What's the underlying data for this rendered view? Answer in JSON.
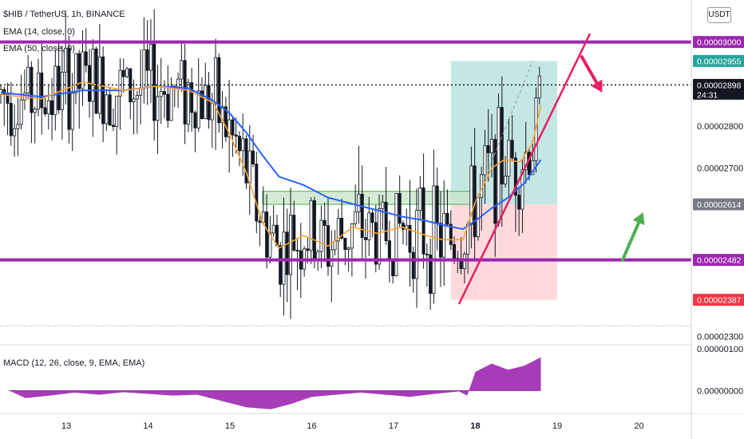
{
  "header": {
    "title": "$HIB / TetherUS, 1h, BINANCE",
    "ema14_label": "EMA (14, close, 0)",
    "ema50_label": "EMA (50, close, 0)",
    "unit_button": "USDT"
  },
  "macd": {
    "label": "MACD (12, 26, close, 9, EMA, EMA)"
  },
  "colors": {
    "up": "#26a69a",
    "down": "#ef5350",
    "candle": "#131722",
    "ema14": "#f7a334",
    "ema50": "#2962ff",
    "level": "#9c27b0",
    "trendline": "#e91e63",
    "profit_zone": "#b2dfdb",
    "loss_zone": "#ffcdd2",
    "consolidation_box": "#c8e6c9",
    "macd_fill": "#9c27b0"
  },
  "chart_data": [
    {
      "type": "candlestick",
      "title": "$HIB / TetherUS, 1h, BINANCE",
      "x_ticks": [
        "13",
        "14",
        "15",
        "16",
        "17",
        "18",
        "19",
        "20"
      ],
      "y_ticks": [
        "0.00002300",
        "0.00002700",
        "0.00002800"
      ],
      "ylim": [
        2.28e-05,
        3.1e-05
      ],
      "price_badges": [
        {
          "text": "0.00003000",
          "value": 3e-05,
          "color": "#9c27b0"
        },
        {
          "text": "0.00002955",
          "value": 2.955e-05,
          "color": "#26a69a"
        },
        {
          "text": "0.00002898",
          "value": 2.898e-05,
          "color": "#131722",
          "timer": "24:31"
        },
        {
          "text": "0.00002614",
          "value": 2.614e-05,
          "color": "#787b86"
        },
        {
          "text": "0.00002482",
          "value": 2.482e-05,
          "color": "#9c27b0"
        },
        {
          "text": "0.00002387",
          "value": 2.387e-05,
          "color": "#f23645"
        }
      ],
      "levels": [
        3e-05,
        2.482e-05
      ],
      "last_price": 2.898e-05,
      "ema14": [
        [
          12.2,
          2.875e-05
        ],
        [
          12.7,
          2.865e-05
        ],
        [
          13.2,
          2.905e-05
        ],
        [
          13.7,
          2.885e-05
        ],
        [
          14.1,
          2.895e-05
        ],
        [
          14.5,
          2.885e-05
        ],
        [
          14.8,
          2.855e-05
        ],
        [
          15.0,
          2.78e-05
        ],
        [
          15.2,
          2.69e-05
        ],
        [
          15.4,
          2.57e-05
        ],
        [
          15.6,
          2.51e-05
        ],
        [
          15.9,
          2.54e-05
        ],
        [
          16.2,
          2.515e-05
        ],
        [
          16.5,
          2.56e-05
        ],
        [
          16.8,
          2.545e-05
        ],
        [
          17.1,
          2.56e-05
        ],
        [
          17.4,
          2.54e-05
        ],
        [
          17.6,
          2.53e-05
        ],
        [
          17.85,
          2.53e-05
        ],
        [
          18.0,
          2.62e-05
        ],
        [
          18.2,
          2.7e-05
        ],
        [
          18.35,
          2.72e-05
        ],
        [
          18.55,
          2.715e-05
        ],
        [
          18.7,
          2.76e-05
        ],
        [
          18.8,
          2.85e-05
        ]
      ],
      "ema50": [
        [
          12.2,
          2.88e-05
        ],
        [
          12.7,
          2.87e-05
        ],
        [
          13.2,
          2.885e-05
        ],
        [
          13.7,
          2.885e-05
        ],
        [
          14.1,
          2.895e-05
        ],
        [
          14.5,
          2.89e-05
        ],
        [
          14.8,
          2.86e-05
        ],
        [
          15.0,
          2.83e-05
        ],
        [
          15.2,
          2.785e-05
        ],
        [
          15.4,
          2.73e-05
        ],
        [
          15.6,
          2.68e-05
        ],
        [
          15.9,
          2.66e-05
        ],
        [
          16.2,
          2.63e-05
        ],
        [
          16.5,
          2.615e-05
        ],
        [
          16.8,
          2.6e-05
        ],
        [
          17.1,
          2.585e-05
        ],
        [
          17.4,
          2.575e-05
        ],
        [
          17.6,
          2.565e-05
        ],
        [
          17.85,
          2.555e-05
        ],
        [
          18.0,
          2.575e-05
        ],
        [
          18.2,
          2.605e-05
        ],
        [
          18.4,
          2.63e-05
        ],
        [
          18.6,
          2.665e-05
        ],
        [
          18.8,
          2.72e-05
        ]
      ],
      "consolidation_box": {
        "x": [
          15.4,
          18.0
        ],
        "y": [
          2.614e-05,
          2.645e-05
        ]
      },
      "position": {
        "x_start": 17.7,
        "x_end": 19.0,
        "entry": 2.614e-05,
        "target": 2.955e-05,
        "stop": 2.387e-05
      },
      "trendline": [
        [
          17.8,
          2.377e-05
        ],
        [
          19.4,
          3.02e-05
        ]
      ],
      "projection_dashed": [
        [
          18.0,
          2.62e-05
        ],
        [
          18.7,
          2.955e-05
        ]
      ],
      "arrow_down": [
        [
          19.3,
          2.965e-05
        ],
        [
          19.55,
          2.88e-05
        ]
      ],
      "arrow_up": [
        [
          19.8,
          2.482e-05
        ],
        [
          20.05,
          2.595e-05
        ]
      ]
    },
    {
      "type": "area",
      "title": "MACD (12, 26, close, 9, EMA, EMA)",
      "y_ticks": [
        "0.00000100",
        "0.00000000"
      ],
      "ylim": [
        -5.5e-07,
        1.1e-06
      ],
      "values": [
        [
          12.3,
          0.0
        ],
        [
          12.5,
          -1.8e-07
        ],
        [
          12.8,
          -1.2e-07
        ],
        [
          13.1,
          -5e-08
        ],
        [
          13.4,
          -1e-07
        ],
        [
          13.7,
          -4e-08
        ],
        [
          14.0,
          -8e-08
        ],
        [
          14.3,
          -1.2e-07
        ],
        [
          14.6,
          -1e-07
        ],
        [
          14.9,
          -2.5e-07
        ],
        [
          15.2,
          -4e-07
        ],
        [
          15.5,
          -4.5e-07
        ],
        [
          15.75,
          -3.2e-07
        ],
        [
          16.0,
          -1.5e-07
        ],
        [
          16.3,
          -1e-07
        ],
        [
          16.6,
          -5e-08
        ],
        [
          16.9,
          -1e-07
        ],
        [
          17.2,
          -1.5e-07
        ],
        [
          17.5,
          -8e-08
        ],
        [
          17.8,
          -2e-08
        ],
        [
          17.9,
          -1.2e-07
        ],
        [
          18.0,
          4.5e-07
        ],
        [
          18.2,
          6.5e-07
        ],
        [
          18.4,
          5e-07
        ],
        [
          18.6,
          6e-07
        ],
        [
          18.8,
          8e-07
        ]
      ]
    }
  ]
}
